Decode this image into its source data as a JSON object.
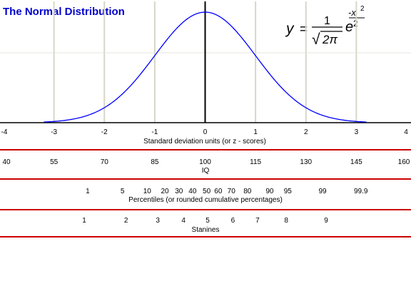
{
  "title": "The Normal Distribution",
  "formula": {
    "lhs": "y",
    "eq": "=",
    "numerator": "1",
    "radical": "√",
    "radicand": "2π",
    "base": "e",
    "exponent_num": "-x",
    "exponent_pow": "2",
    "exponent_den": "2"
  },
  "colors": {
    "title": "#0000cc",
    "curve": "#0000ff",
    "rule": "#cc0000",
    "grid": "#d6d6c8",
    "axis": "#000000"
  },
  "chart_data": {
    "type": "line",
    "title": "The Normal Distribution",
    "function": "y = (1/sqrt(2*pi)) * exp(-x^2/2)",
    "x_domain": [
      -3.2,
      3.2
    ],
    "xlim": [
      -4,
      4
    ],
    "xlabel": "Standard deviation units (or z - scores)",
    "x_ticks": [
      -4,
      -3,
      -2,
      -1,
      0,
      1,
      2,
      3,
      4
    ],
    "x_tick_labels": [
      "-4",
      "-3",
      "-2",
      "-1",
      "0",
      "1",
      "2",
      "3",
      "4"
    ],
    "vertical_grid_at": [
      -3,
      -2,
      -1,
      1,
      2,
      3
    ],
    "horizontal_grid": true
  },
  "scales": [
    {
      "id": "iq",
      "caption": "IQ",
      "ticks": [
        {
          "label": "40",
          "z": -4
        },
        {
          "label": "55",
          "z": -3
        },
        {
          "label": "70",
          "z": -2
        },
        {
          "label": "85",
          "z": -1
        },
        {
          "label": "100",
          "z": 0
        },
        {
          "label": "115",
          "z": 1
        },
        {
          "label": "130",
          "z": 2
        },
        {
          "label": "145",
          "z": 3
        },
        {
          "label": "160",
          "z": 4
        }
      ]
    },
    {
      "id": "percentiles",
      "caption": "Percentiles (or rounded cumulative percentages)",
      "ticks": [
        {
          "label": "1",
          "z": -2.33
        },
        {
          "label": "5",
          "z": -1.64
        },
        {
          "label": "10",
          "z": -1.15
        },
        {
          "label": "20",
          "z": -0.8
        },
        {
          "label": "30",
          "z": -0.52
        },
        {
          "label": "40",
          "z": -0.25
        },
        {
          "label": "50",
          "z": 0.03
        },
        {
          "label": "60",
          "z": 0.26
        },
        {
          "label": "70",
          "z": 0.52
        },
        {
          "label": "80",
          "z": 0.84
        },
        {
          "label": "90",
          "z": 1.28
        },
        {
          "label": "95",
          "z": 1.64
        },
        {
          "label": "99",
          "z": 2.33
        },
        {
          "label": "99.9",
          "z": 3.09
        }
      ]
    },
    {
      "id": "stanines",
      "caption": "Stanines",
      "ticks": [
        {
          "label": "1",
          "z": -2.4
        },
        {
          "label": "2",
          "z": -1.57
        },
        {
          "label": "3",
          "z": -0.94
        },
        {
          "label": "4",
          "z": -0.43
        },
        {
          "label": "5",
          "z": 0.05
        },
        {
          "label": "6",
          "z": 0.55
        },
        {
          "label": "7",
          "z": 1.04
        },
        {
          "label": "8",
          "z": 1.61
        },
        {
          "label": "9",
          "z": 2.4
        }
      ]
    }
  ]
}
